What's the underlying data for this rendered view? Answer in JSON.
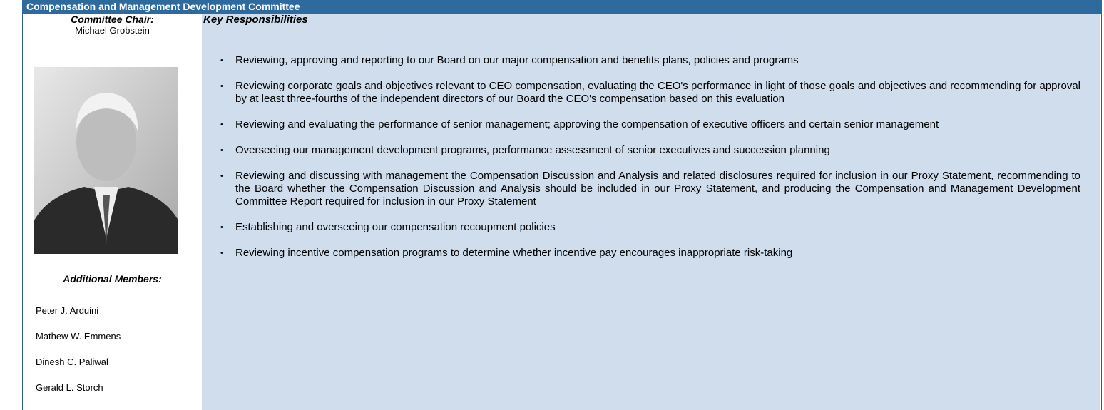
{
  "header": {
    "title": "Compensation and Management Development Committee"
  },
  "chair": {
    "label": "Committee Chair:",
    "name": "Michael Grobstein"
  },
  "members": {
    "label": "Additional Members:",
    "names": [
      "Peter J. Arduini",
      "Mathew W. Emmens",
      "Dinesh C. Paliwal",
      "Gerald L. Storch"
    ]
  },
  "responsibilities": {
    "title": "Key Responsibilities",
    "items": [
      "Reviewing, approving and reporting to our Board on our major compensation and benefits plans, policies and programs",
      "Reviewing corporate goals and objectives relevant to CEO compensation, evaluating the CEO's performance in light of those goals and objectives and recommending for approval by at least three-fourths of the independent directors of our Board the CEO's compensation based on this evaluation",
      "Reviewing and evaluating the performance of senior management; approving the compensation of executive officers and certain senior management",
      "Overseeing our management development programs, performance assessment of senior executives and succession planning",
      "Reviewing and discussing with management the Compensation Discussion and Analysis and related disclosures required for inclusion in our Proxy Statement, recommending to the Board whether the Compensation Discussion and Analysis should be included in our Proxy Statement, and producing the Compensation and Management Development Committee Report required for inclusion in our Proxy Statement",
      "Establishing and overseeing our compensation recoupment policies",
      "Reviewing incentive compensation programs to determine whether incentive pay encourages inappropriate risk-taking"
    ]
  }
}
